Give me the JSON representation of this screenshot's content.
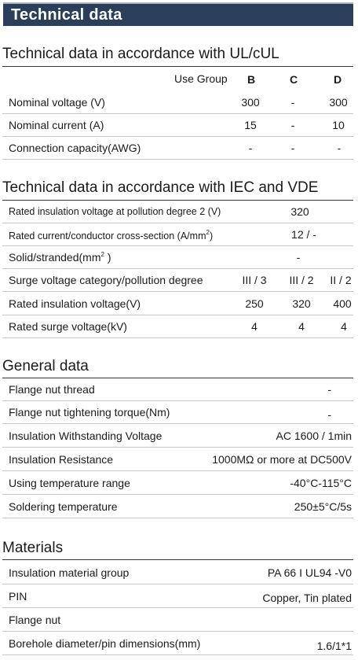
{
  "header": {
    "title": "Technical data"
  },
  "ul": {
    "title": "Technical data in accordance with UL/cUL",
    "use_group_label": "Use Group",
    "groups": [
      "B",
      "C",
      "D"
    ],
    "rows": [
      {
        "label": "Nominal voltage (V)",
        "values": [
          "300",
          "-",
          "300"
        ]
      },
      {
        "label": "Nominal current (A)",
        "values": [
          "15",
          "-",
          "10"
        ]
      },
      {
        "label": "Connection capacity(AWG)",
        "values": [
          "-",
          "-",
          "-"
        ]
      }
    ]
  },
  "iec": {
    "title": "Technical data in accordance with IEC and VDE",
    "rows": [
      {
        "label": "Rated insulation voltage at pollution degree 2 (V)",
        "value": "320"
      },
      {
        "label": "Rated current/conductor cross-section (A/mm",
        "sup": "2",
        "label_end": ")",
        "value": "12 / -"
      },
      {
        "label": "Solid/stranded(mm",
        "sup": "2",
        "label_end": " )",
        "value": "-"
      },
      {
        "label": "Surge voltage category/pollution degree",
        "values": [
          "III / 3",
          "III / 2",
          "II / 2"
        ]
      },
      {
        "label": "Rated insulation voltage(V)",
        "values": [
          "250",
          "320",
          "400"
        ]
      },
      {
        "label": "Rated surge voltage(kV)",
        "values": [
          "4",
          "4",
          "4"
        ]
      }
    ]
  },
  "general": {
    "title": "General data",
    "rows": [
      {
        "label": "Flange nut thread",
        "value": "-"
      },
      {
        "label": "Flange nut tightening torque(Nm)",
        "value": "-"
      },
      {
        "label": "Insulation Withstanding Voltage",
        "value": "AC 1600 / 1min"
      },
      {
        "label": "Insulation Resistance",
        "value": "1000MΩ  or more at DC500V"
      },
      {
        "label": "Using temperature range",
        "value": "-40°C-115°C"
      },
      {
        "label": "Soldering temperature",
        "value": "250±5°C/5s"
      }
    ]
  },
  "materials": {
    "title": "Materials",
    "rows": [
      {
        "label": "Insulation material group",
        "value": "PA 66  I  UL94 -V0"
      },
      {
        "label": "PIN",
        "value": "Copper, Tin plated"
      },
      {
        "label": "Flange nut",
        "value": ""
      },
      {
        "label": "Borehole diameter/pin dimensions(mm)",
        "value": "1.6/1*1"
      }
    ]
  }
}
